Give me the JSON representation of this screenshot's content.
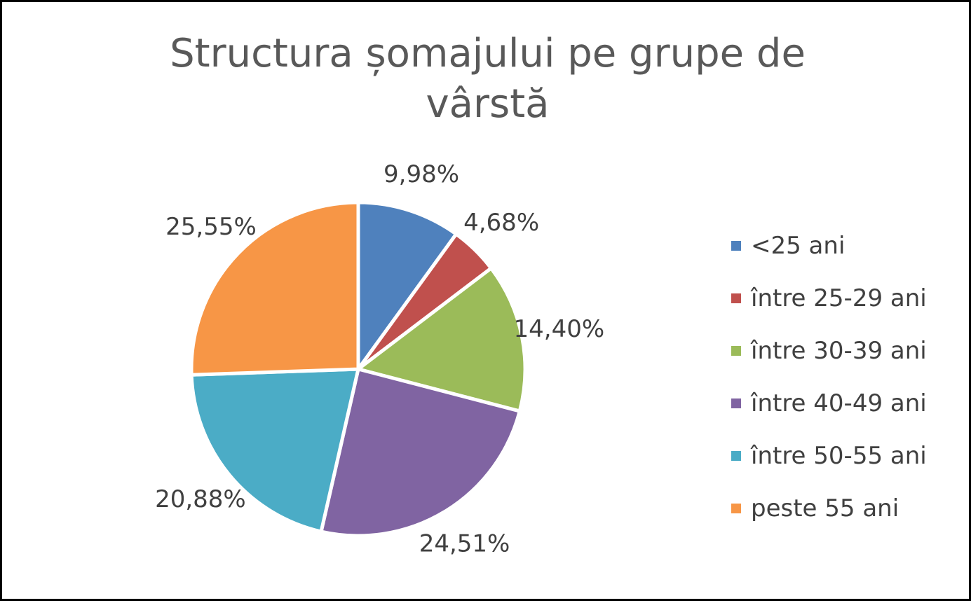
{
  "chart_data": {
    "type": "pie",
    "title": "Structura șomajului pe grupe de vârstă",
    "categories": [
      "<25 ani",
      "între 25-29 ani",
      "între 30-39 ani",
      "între 40-49 ani",
      "între 50-55 ani",
      "peste 55 ani"
    ],
    "values": [
      9.98,
      4.68,
      14.4,
      24.51,
      20.88,
      25.55
    ],
    "labels": [
      "9,98%",
      "4,68%",
      "14,40%",
      "24,51%",
      "20,88%",
      "25,55%"
    ],
    "colors": [
      "#4F81BD",
      "#C0504D",
      "#9BBB59",
      "#8064A2",
      "#4BACC6",
      "#F79646"
    ],
    "legend_position": "right",
    "start_angle_deg": 0,
    "direction": "clockwise"
  }
}
